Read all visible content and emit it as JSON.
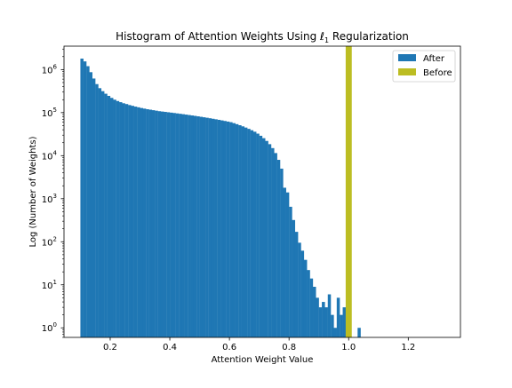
{
  "chart_data": {
    "type": "bar",
    "title": "Histogram of Attention Weights Using ℓ1 Regularization",
    "title_parts": {
      "prefix": "Histogram of Attention Weights Using ",
      "symbol": "ℓ",
      "subscript": "1",
      "suffix": " Regularization"
    },
    "xlabel": "Attention Weight Value",
    "ylabel": "Log (Number of Weights)",
    "x_scale": "linear",
    "y_scale": "log",
    "xlim": [
      0.045,
      1.375
    ],
    "ylim": [
      0.6,
      3500000
    ],
    "x_ticks": [
      0.2,
      0.4,
      0.6,
      0.8,
      1.0,
      1.2
    ],
    "x_tick_labels": [
      "0.2",
      "0.4",
      "0.6",
      "0.8",
      "1.0",
      "1.2"
    ],
    "y_ticks": [
      1,
      10,
      100,
      1000,
      10000,
      100000,
      1000000
    ],
    "y_tick_labels": [
      {
        "base": "10",
        "exp": "0"
      },
      {
        "base": "10",
        "exp": "1"
      },
      {
        "base": "10",
        "exp": "2"
      },
      {
        "base": "10",
        "exp": "3"
      },
      {
        "base": "10",
        "exp": "4"
      },
      {
        "base": "10",
        "exp": "5"
      },
      {
        "base": "10",
        "exp": "6"
      }
    ],
    "grid": false,
    "legend_position": "top-right",
    "series": [
      {
        "name": "After",
        "color": "#1f77b4",
        "bin_start": 0.1,
        "bin_width": 0.01,
        "values": [
          1800000,
          1550000,
          1200000,
          870000,
          620000,
          460000,
          370000,
          315000,
          275000,
          245000,
          220000,
          200000,
          186000,
          175000,
          165000,
          158000,
          150000,
          144000,
          138000,
          133000,
          128000,
          124000,
          120000,
          117000,
          114000,
          111000,
          108000,
          106000,
          104000,
          102000,
          100000,
          98000,
          96000,
          94000,
          92000,
          90000,
          88000,
          86000,
          84000,
          82000,
          80000,
          78000,
          76000,
          74000,
          72000,
          70000,
          68000,
          66000,
          64000,
          62000,
          60000,
          57000,
          54000,
          51000,
          48000,
          45000,
          42000,
          39000,
          36000,
          32500,
          29000,
          25500,
          22000,
          18500,
          15000,
          11500,
          8000,
          5000,
          1800,
          1400,
          650,
          320,
          170,
          95,
          62,
          38,
          22,
          14,
          9,
          5,
          3,
          4,
          3,
          6,
          2,
          1,
          5,
          2,
          3,
          1,
          0.6,
          0.6,
          0.6,
          1
        ],
        "values_note": ""
      },
      {
        "name": "Before",
        "color": "#bcbd22",
        "bin_start": 0.99,
        "bin_width": 0.02,
        "values": [
          3500000
        ]
      }
    ]
  }
}
